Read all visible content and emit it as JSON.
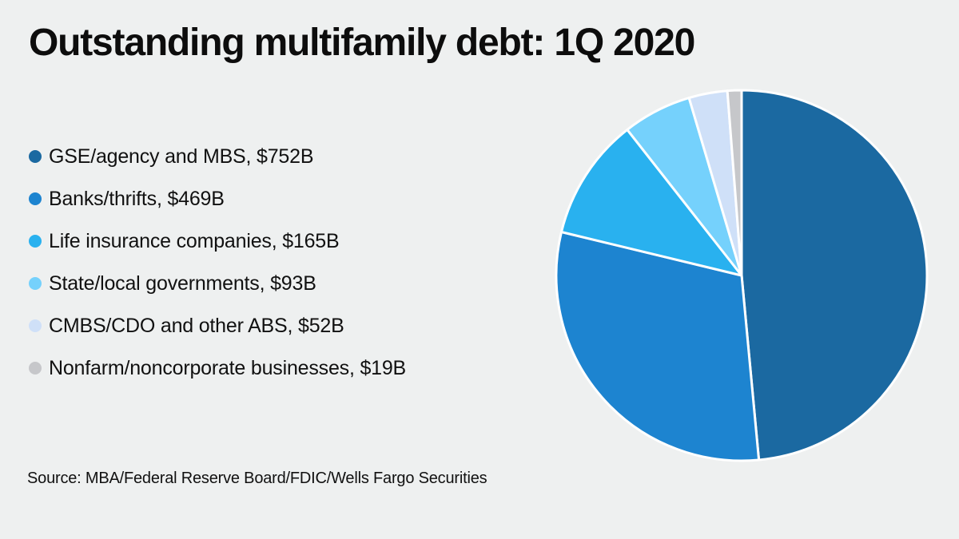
{
  "page": {
    "background_color": "#eef0f0",
    "text_color": "#0d0d0d"
  },
  "title": "Outstanding multifamily debt: 1Q 2020",
  "source": "Source: MBA/Federal Reserve Board/FDIC/Wells Fargo Securities",
  "chart_data": {
    "type": "pie",
    "title": "Outstanding multifamily debt: 1Q 2020",
    "unit": "USD billions",
    "total_value": 1550,
    "start_angle_deg": 0,
    "direction": "clockwise",
    "legend_position": "left",
    "slice_border_color": "#ffffff",
    "slices": [
      {
        "label": "GSE/agency and MBS",
        "value": 752,
        "legend_label": "GSE/agency and MBS, $752B",
        "color": "#1b69a1"
      },
      {
        "label": "Banks/thrifts",
        "value": 469,
        "legend_label": "Banks/thrifts, $469B",
        "color": "#1d84d0"
      },
      {
        "label": "Life insurance companies",
        "value": 165,
        "legend_label": "Life insurance companies, $165B",
        "color": "#29b1ef"
      },
      {
        "label": "State/local governments",
        "value": 93,
        "legend_label": "State/local governments, $93B",
        "color": "#75d1fc"
      },
      {
        "label": "CMBS/CDO and other ABS",
        "value": 52,
        "legend_label": "CMBS/CDO and other ABS, $52B",
        "color": "#cfe0f8"
      },
      {
        "label": "Nonfarm/noncorporate businesses",
        "value": 19,
        "legend_label": "Nonfarm/noncorporate businesses, $19B",
        "color": "#c6c7ca"
      }
    ]
  }
}
